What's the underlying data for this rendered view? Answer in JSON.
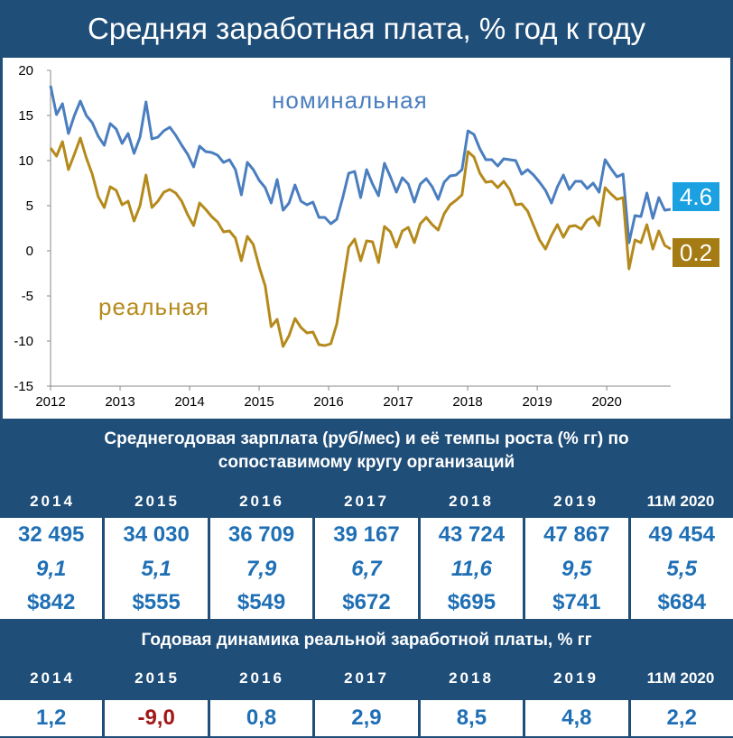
{
  "title": "Средняя заработная плата, % год к году",
  "chart_data": {
    "type": "line",
    "y_ticks": [
      20,
      15,
      10,
      5,
      0,
      -5,
      -10,
      -15
    ],
    "ylim": [
      -15,
      20
    ],
    "x_ticks": [
      "2012",
      "2013",
      "2014",
      "2015",
      "2016",
      "2017",
      "2018",
      "2019",
      "2020"
    ],
    "xlim": [
      2012.0,
      2020.92
    ],
    "grid": false,
    "series": [
      {
        "name": "номинальная",
        "color": "#4a7ebf",
        "end_label": "4.6",
        "values": [
          18.3,
          15.1,
          16.3,
          13.0,
          15.0,
          16.6,
          15.0,
          14.2,
          12.7,
          11.7,
          14.1,
          13.5,
          11.9,
          13.0,
          10.8,
          12.6,
          16.5,
          12.4,
          12.6,
          13.3,
          13.7,
          12.8,
          11.7,
          10.7,
          9.3,
          11.6,
          11.0,
          10.9,
          10.6,
          9.8,
          10.1,
          9.0,
          6.2,
          9.8,
          9.0,
          7.8,
          7.0,
          5.3,
          7.9,
          4.5,
          5.3,
          7.3,
          5.5,
          5.1,
          5.4,
          3.7,
          3.7,
          3.0,
          3.5,
          5.9,
          8.6,
          8.8,
          5.9,
          9.0,
          7.4,
          6.1,
          9.7,
          8.2,
          6.5,
          8.1,
          7.4,
          5.4,
          7.4,
          8.0,
          7.1,
          5.7,
          7.6,
          8.3,
          8.4,
          9.0,
          13.3,
          12.9,
          11.3,
          10.1,
          10.1,
          9.4,
          10.2,
          10.1,
          10.0,
          8.5,
          9.0,
          8.4,
          7.6,
          6.7,
          5.3,
          7.1,
          8.4,
          6.8,
          7.7,
          7.7,
          6.9,
          7.5,
          6.5,
          10.1,
          9.1,
          8.2,
          8.5,
          0.9,
          3.9,
          3.8,
          6.4,
          3.6,
          5.9,
          4.5,
          4.6
        ]
      },
      {
        "name": "реальная",
        "color": "#b58a1c",
        "end_label": "0.2",
        "values": [
          11.4,
          10.5,
          12.1,
          9.0,
          10.7,
          12.5,
          10.3,
          8.5,
          6.0,
          4.8,
          7.1,
          6.7,
          5.1,
          5.5,
          3.3,
          5.0,
          8.4,
          4.8,
          5.5,
          6.5,
          6.8,
          6.4,
          5.5,
          4.0,
          2.8,
          5.3,
          4.6,
          3.8,
          3.2,
          2.1,
          2.2,
          1.4,
          -1.1,
          1.6,
          0.7,
          -1.8,
          -3.9,
          -8.4,
          -7.6,
          -10.6,
          -9.4,
          -7.5,
          -8.5,
          -9.1,
          -9.0,
          -10.4,
          -10.5,
          -10.3,
          -8.1,
          -3.8,
          0.4,
          1.3,
          -1.1,
          1.1,
          1.0,
          -1.3,
          2.7,
          2.1,
          0.4,
          2.2,
          2.6,
          0.9,
          3.0,
          3.7,
          2.9,
          2.3,
          4.1,
          5.1,
          5.6,
          6.2,
          11.0,
          10.4,
          8.6,
          7.6,
          7.7,
          7.0,
          7.7,
          6.8,
          5.1,
          5.2,
          4.4,
          2.8,
          1.2,
          0.2,
          1.7,
          2.9,
          1.5,
          2.7,
          2.8,
          2.4,
          3.4,
          3.8,
          2.8,
          7.0,
          6.3,
          5.7,
          5.9,
          -2.0,
          1.2,
          0.9,
          2.9,
          0.2,
          2.2,
          0.6,
          0.2
        ]
      }
    ]
  },
  "table": {
    "header1_line1": "Среднегодовая зарплата (руб/мес) и её темпы роста (% гг)  по",
    "header1_line2": "сопоставимому кругу организаций",
    "years": [
      "2014",
      "2015",
      "2016",
      "2017",
      "2018",
      "2019",
      "11M 2020"
    ],
    "salaries_rub": [
      "32 495",
      "34 030",
      "36 709",
      "39 167",
      "43 724",
      "47 867",
      "49 454"
    ],
    "growth_pct": [
      "9,1",
      "5,1",
      "7,9",
      "6,7",
      "11,6",
      "9,5",
      "5,5"
    ],
    "salaries_usd": [
      "$842",
      "$555",
      "$549",
      "$672",
      "$695",
      "$741",
      "$684"
    ],
    "header2": "Годовая динамика реальной заработной платы, % гг",
    "real_growth": [
      "1,2",
      "-9,0",
      "0,8",
      "2,9",
      "8,5",
      "4,8",
      "2,2"
    ]
  }
}
